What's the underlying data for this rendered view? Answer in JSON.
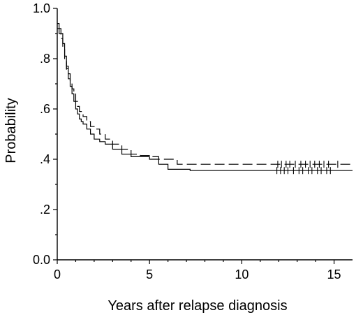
{
  "chart_data": {
    "type": "line",
    "title": "",
    "xlabel": "Years after relapse diagnosis",
    "ylabel": "Probability",
    "xlim": [
      0,
      16
    ],
    "ylim": [
      0,
      1
    ],
    "x_ticks": [
      0,
      5,
      10,
      15
    ],
    "x_tick_labels": [
      "0",
      "5",
      "10",
      "15"
    ],
    "y_ticks": [
      0,
      0.2,
      0.4,
      0.6,
      0.8,
      1.0
    ],
    "y_tick_labels": [
      "0.0",
      ".2",
      ".4",
      ".6",
      ".8",
      "1.0"
    ],
    "grid": false,
    "legend": "none",
    "series": [
      {
        "line_style": "solid",
        "step": true,
        "x": [
          0,
          0.1,
          0.2,
          0.3,
          0.4,
          0.5,
          0.6,
          0.7,
          0.8,
          0.9,
          1.0,
          1.1,
          1.2,
          1.3,
          1.4,
          1.6,
          1.8,
          2.0,
          2.3,
          2.6,
          3.0,
          3.5,
          4.0,
          4.5,
          5.0,
          5.5,
          6.0,
          7.2,
          16
        ],
        "y": [
          0.94,
          0.92,
          0.9,
          0.86,
          0.81,
          0.76,
          0.72,
          0.69,
          0.66,
          0.63,
          0.6,
          0.58,
          0.56,
          0.55,
          0.54,
          0.52,
          0.5,
          0.48,
          0.47,
          0.46,
          0.44,
          0.42,
          0.41,
          0.41,
          0.4,
          0.38,
          0.36,
          0.355,
          0.355
        ],
        "censor_x": [
          11.9,
          12.1,
          12.3,
          12.5,
          12.8,
          13.1,
          13.3,
          13.6,
          13.8,
          14.1,
          14.3,
          14.6,
          14.8
        ]
      },
      {
        "line_style": "dashed",
        "step": true,
        "x": [
          0,
          0.1,
          0.2,
          0.3,
          0.4,
          0.5,
          0.6,
          0.7,
          0.8,
          0.9,
          1.0,
          1.1,
          1.2,
          1.4,
          1.6,
          1.8,
          2.0,
          2.3,
          2.6,
          3.0,
          3.5,
          4.0,
          4.5,
          5.0,
          5.5,
          6.5,
          16
        ],
        "y": [
          0.92,
          0.9,
          0.88,
          0.84,
          0.8,
          0.77,
          0.74,
          0.71,
          0.68,
          0.66,
          0.63,
          0.61,
          0.59,
          0.57,
          0.55,
          0.53,
          0.52,
          0.5,
          0.48,
          0.46,
          0.44,
          0.42,
          0.415,
          0.41,
          0.4,
          0.38,
          0.38
        ],
        "censor_x": [
          0.5,
          11.95,
          12.15,
          12.4,
          12.6,
          12.9,
          13.2,
          13.45,
          13.7,
          13.95,
          14.2,
          14.45,
          14.7,
          15.2
        ]
      }
    ]
  }
}
